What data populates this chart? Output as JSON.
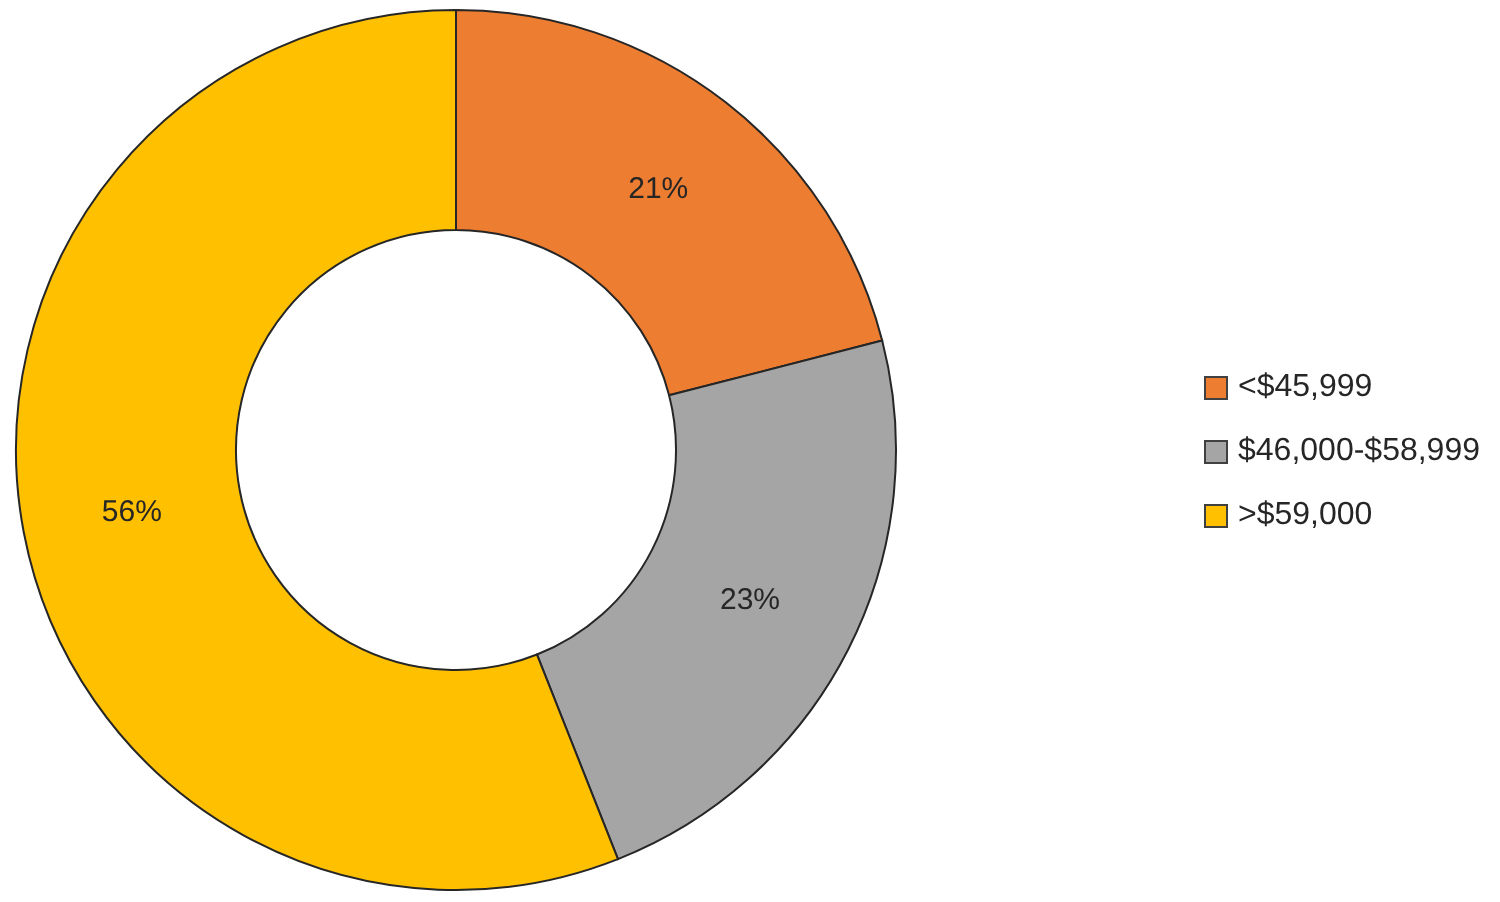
{
  "chart_data": {
    "type": "donut",
    "categories": [
      "<$45,999",
      "$46,000-$58,999",
      ">$59,000"
    ],
    "values": [
      21,
      23,
      56
    ],
    "colors": [
      "#ed7d31",
      "#a5a5a5",
      "#ffc000"
    ],
    "value_labels": [
      "21%",
      "23%",
      "56%"
    ],
    "legend": "right"
  }
}
